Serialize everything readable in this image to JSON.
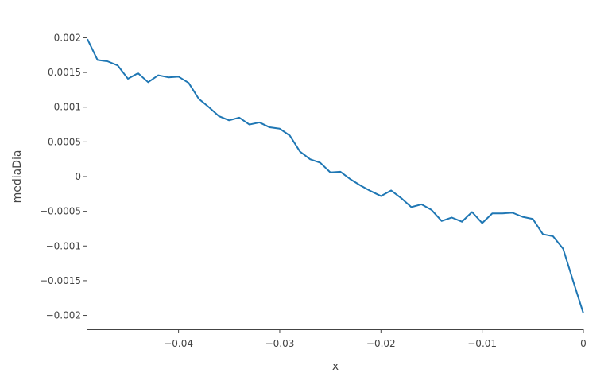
{
  "chart_data": {
    "type": "line",
    "xlabel": "x",
    "ylabel": "mediaDia",
    "xlim": [
      -0.049,
      0
    ],
    "ylim": [
      -0.0022,
      0.0022
    ],
    "x_ticks": [
      {
        "value": -0.04,
        "label": "−0.04"
      },
      {
        "value": -0.03,
        "label": "−0.03"
      },
      {
        "value": -0.02,
        "label": "−0.02"
      },
      {
        "value": -0.01,
        "label": "−0.01"
      },
      {
        "value": 0,
        "label": "0"
      }
    ],
    "y_ticks": [
      {
        "value": 0.002,
        "label": "0.002"
      },
      {
        "value": 0.0015,
        "label": "0.0015"
      },
      {
        "value": 0.001,
        "label": "0.001"
      },
      {
        "value": 0.0005,
        "label": "0.0005"
      },
      {
        "value": 0,
        "label": "0"
      },
      {
        "value": -0.0005,
        "label": "−0.0005"
      },
      {
        "value": -0.001,
        "label": "−0.001"
      },
      {
        "value": -0.0015,
        "label": "−0.0015"
      },
      {
        "value": -0.002,
        "label": "−0.002"
      }
    ],
    "grid": false,
    "series": [
      {
        "color": "#1f77b4",
        "x": [
          -0.049,
          -0.048,
          -0.047,
          -0.046,
          -0.045,
          -0.044,
          -0.043,
          -0.042,
          -0.041,
          -0.04,
          -0.039,
          -0.038,
          -0.037,
          -0.036,
          -0.035,
          -0.034,
          -0.033,
          -0.032,
          -0.031,
          -0.03,
          -0.029,
          -0.028,
          -0.027,
          -0.026,
          -0.025,
          -0.024,
          -0.023,
          -0.022,
          -0.021,
          -0.02,
          -0.019,
          -0.018,
          -0.017,
          -0.016,
          -0.015,
          -0.014,
          -0.013,
          -0.012,
          -0.011,
          -0.01,
          -0.009,
          -0.008,
          -0.007,
          -0.006,
          -0.005,
          -0.004,
          -0.003,
          -0.002,
          -0.001,
          0.0
        ],
        "y": [
          0.00198,
          0.00168,
          0.00166,
          0.0016,
          0.00141,
          0.00149,
          0.00136,
          0.00146,
          0.00143,
          0.00144,
          0.00135,
          0.00112,
          0.001,
          0.00087,
          0.00081,
          0.00085,
          0.00075,
          0.00078,
          0.00071,
          0.00069,
          0.00059,
          0.00036,
          0.00025,
          0.0002,
          6e-05,
          7e-05,
          -4e-05,
          -0.00013,
          -0.00021,
          -0.00028,
          -0.0002,
          -0.00031,
          -0.00044,
          -0.0004,
          -0.00048,
          -0.00064,
          -0.00059,
          -0.00065,
          -0.00051,
          -0.00067,
          -0.00053,
          -0.00053,
          -0.00052,
          -0.00058,
          -0.00061,
          -0.00083,
          -0.00086,
          -0.00104,
          -0.00151,
          -0.00197
        ]
      }
    ]
  }
}
